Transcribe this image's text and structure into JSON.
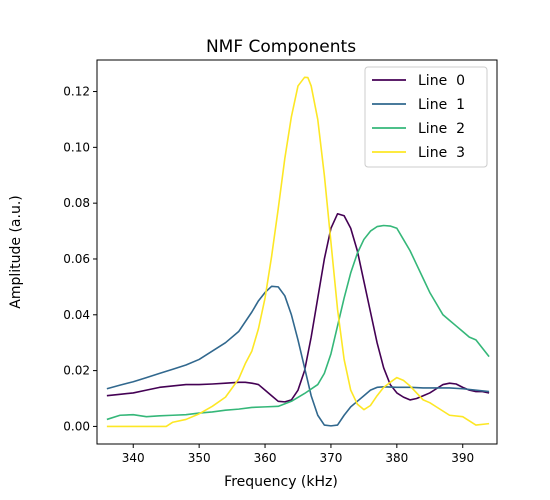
{
  "chart_data": {
    "type": "line",
    "title": "NMF Components",
    "xlabel": "Frequency (kHz)",
    "ylabel": "Amplitude (a.u.)",
    "xlim": [
      334.5,
      395.2
    ],
    "ylim": [
      -0.0063,
      0.1313
    ],
    "xticks": [
      340,
      350,
      360,
      370,
      380,
      390
    ],
    "yticks": [
      0.0,
      0.02,
      0.04,
      0.06,
      0.08,
      0.1,
      0.12
    ],
    "tick_format": {
      "x": "integer",
      "y": "two_decimals"
    },
    "grid": false,
    "legend_position": "top-right",
    "series": [
      {
        "name": "Line  0",
        "color": "#440154",
        "x": [
          336,
          338,
          340,
          342,
          344,
          346,
          348,
          350,
          352,
          354,
          356,
          357,
          358,
          359,
          360,
          361,
          362,
          363,
          364,
          365,
          366,
          367,
          368,
          369,
          370,
          371,
          372,
          373,
          374,
          375,
          376,
          377,
          378,
          379,
          380,
          381,
          382,
          383,
          384,
          385,
          386,
          387,
          388,
          389,
          390,
          391,
          392,
          393,
          394
        ],
        "y": [
          0.011,
          0.0115,
          0.012,
          0.013,
          0.014,
          0.0145,
          0.015,
          0.015,
          0.0152,
          0.0155,
          0.0158,
          0.0158,
          0.0155,
          0.015,
          0.013,
          0.011,
          0.009,
          0.0088,
          0.0095,
          0.013,
          0.02,
          0.032,
          0.046,
          0.06,
          0.071,
          0.0762,
          0.0755,
          0.071,
          0.063,
          0.052,
          0.041,
          0.03,
          0.021,
          0.015,
          0.012,
          0.0105,
          0.0095,
          0.01,
          0.011,
          0.012,
          0.0135,
          0.015,
          0.0155,
          0.0152,
          0.014,
          0.013,
          0.0125,
          0.0125,
          0.012
        ]
      },
      {
        "name": "Line  1",
        "color": "#31688e",
        "x": [
          336,
          338,
          340,
          342,
          344,
          346,
          348,
          350,
          352,
          354,
          356,
          358,
          359,
          360,
          361,
          362,
          363,
          364,
          365,
          366,
          367,
          368,
          369,
          370,
          371,
          372,
          373,
          374,
          375,
          376,
          377,
          378,
          380,
          382,
          384,
          386,
          388,
          390,
          392,
          394
        ],
        "y": [
          0.0135,
          0.0148,
          0.016,
          0.0175,
          0.019,
          0.0205,
          0.022,
          0.024,
          0.027,
          0.03,
          0.034,
          0.041,
          0.045,
          0.048,
          0.0502,
          0.05,
          0.0468,
          0.04,
          0.031,
          0.021,
          0.011,
          0.004,
          0.0005,
          0.0002,
          0.0005,
          0.004,
          0.007,
          0.009,
          0.011,
          0.013,
          0.014,
          0.0142,
          0.014,
          0.014,
          0.0138,
          0.0138,
          0.0138,
          0.0135,
          0.013,
          0.0125
        ]
      },
      {
        "name": "Line  2",
        "color": "#35b779",
        "x": [
          336,
          338,
          340,
          342,
          344,
          346,
          348,
          350,
          352,
          354,
          356,
          358,
          360,
          362,
          364,
          366,
          368,
          369,
          370,
          371,
          372,
          373,
          374,
          375,
          376,
          377,
          378,
          379,
          380,
          381,
          382,
          383,
          384,
          385,
          386,
          387,
          388,
          389,
          390,
          391,
          392,
          393,
          394
        ],
        "y": [
          0.0025,
          0.004,
          0.0042,
          0.0035,
          0.0038,
          0.004,
          0.0042,
          0.0048,
          0.0052,
          0.0058,
          0.0062,
          0.0068,
          0.007,
          0.0072,
          0.009,
          0.0118,
          0.015,
          0.019,
          0.026,
          0.036,
          0.046,
          0.055,
          0.062,
          0.067,
          0.07,
          0.0716,
          0.072,
          0.0718,
          0.071,
          0.067,
          0.063,
          0.058,
          0.053,
          0.048,
          0.044,
          0.04,
          0.038,
          0.036,
          0.034,
          0.032,
          0.031,
          0.028,
          0.025
        ]
      },
      {
        "name": "Line  3",
        "color": "#fde725",
        "x": [
          336,
          338,
          340,
          342,
          344,
          345,
          346,
          348,
          350,
          352,
          354,
          356,
          357,
          358,
          359,
          360,
          361,
          362,
          363,
          364,
          365,
          366,
          366.5,
          367,
          368,
          369,
          370,
          371,
          372,
          373,
          374,
          375,
          376,
          377,
          378,
          379,
          380,
          381,
          382,
          383,
          384,
          385,
          386,
          388,
          390,
          392,
          394
        ],
        "y": [
          0.0,
          0.0,
          0.0,
          0.0,
          0.0,
          0.0,
          0.0015,
          0.0025,
          0.0045,
          0.0072,
          0.0105,
          0.017,
          0.0225,
          0.027,
          0.035,
          0.046,
          0.061,
          0.078,
          0.096,
          0.111,
          0.122,
          0.1251,
          0.125,
          0.122,
          0.11,
          0.09,
          0.066,
          0.042,
          0.024,
          0.013,
          0.008,
          0.006,
          0.0075,
          0.011,
          0.014,
          0.0158,
          0.0175,
          0.0165,
          0.0145,
          0.012,
          0.0095,
          0.0085,
          0.007,
          0.004,
          0.0035,
          0.0005,
          0.001
        ]
      }
    ]
  }
}
